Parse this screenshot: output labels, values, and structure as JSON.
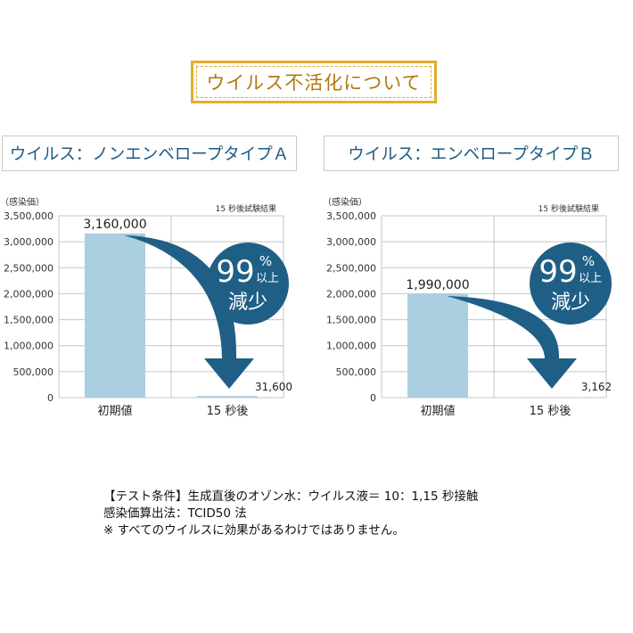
{
  "header": {
    "title": "ウイルス不活化について"
  },
  "panels": [
    {
      "title": "ウイルス：ノンエンベロープタイプＡ",
      "ylabel": "（感染価）",
      "note": "15 秒後試験結果",
      "badge_big": "99",
      "badge_pct": "%",
      "badge_up": "以上",
      "badge_bottom": "減少"
    },
    {
      "title": "ウイルス：エンベロープタイプＢ",
      "ylabel": "（感染価）",
      "note": "15 秒後試験結果",
      "badge_big": "99",
      "badge_pct": "%",
      "badge_up": "以上",
      "badge_bottom": "減少"
    }
  ],
  "chart_data": [
    {
      "type": "bar",
      "title": "ウイルス：ノンエンベロープタイプＡ",
      "categories": [
        "初期値",
        "15 秒後"
      ],
      "values": [
        3160000,
        31600
      ],
      "value_labels": [
        "3,160,000",
        "31,600"
      ],
      "ylabel": "（感染価）",
      "ylim": [
        0,
        3500000
      ],
      "yticks": [
        "3,500,000",
        "3,000,000",
        "2,500,000",
        "2,000,000",
        "1,500,000",
        "1,000,000",
        "500,000",
        "0"
      ],
      "bar_color": "#a9cfe0",
      "accent": "#1f5f86"
    },
    {
      "type": "bar",
      "title": "ウイルス：エンベロープタイプＢ",
      "categories": [
        "初期値",
        "15 秒後"
      ],
      "values": [
        1990000,
        3162
      ],
      "value_labels": [
        "1,990,000",
        "3,162"
      ],
      "ylabel": "（感染価）",
      "ylim": [
        0,
        3500000
      ],
      "yticks": [
        "3,500,000",
        "3,000,000",
        "2,500,000",
        "2,000,000",
        "1,500,000",
        "1,000,000",
        "500,000",
        "0"
      ],
      "bar_color": "#a9cfe0",
      "accent": "#1f5f86"
    }
  ],
  "footnote": {
    "line1": "【テスト条件】生成直後のオゾン水：ウイルス液＝ 10：1,15 秒接触",
    "line2": "感染価算出法：TCID50 法",
    "line3": "※ すべてのウイルスに効果があるわけではありません。"
  }
}
